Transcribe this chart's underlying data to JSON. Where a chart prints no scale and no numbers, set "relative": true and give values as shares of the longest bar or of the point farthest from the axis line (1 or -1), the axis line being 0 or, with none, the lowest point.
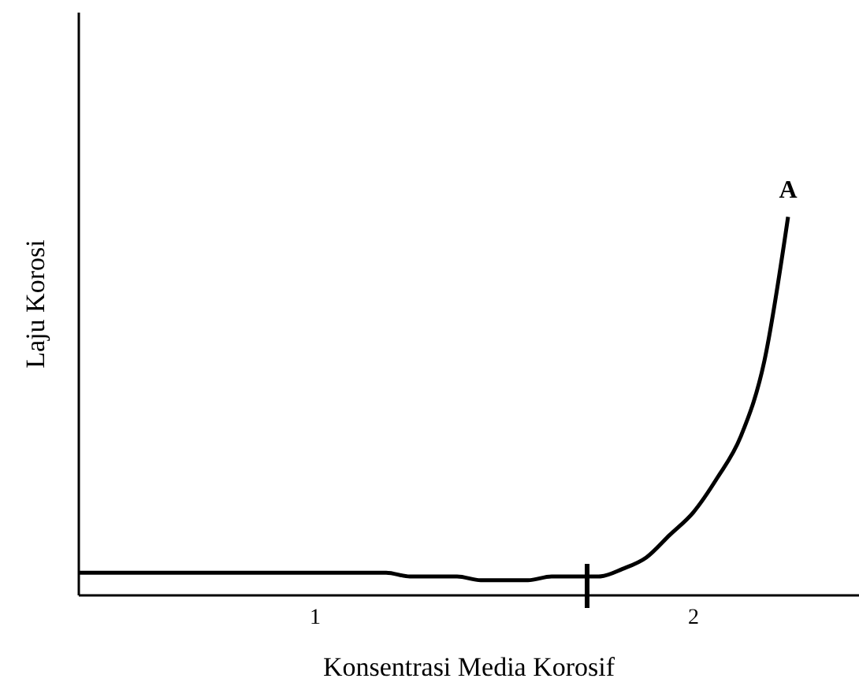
{
  "chart_data": {
    "type": "line",
    "relative": true,
    "xlabel": "Konsentrasi Media Korosif",
    "ylabel": "Laju Korosi",
    "categories": [
      null,
      null,
      null,
      null,
      null,
      null,
      null,
      null,
      null,
      null,
      "1",
      null,
      null,
      null,
      null,
      null,
      null,
      null,
      null,
      null,
      null,
      null,
      null,
      null,
      null,
      null,
      "2",
      null,
      null,
      null,
      null,
      null,
      null,
      null
    ],
    "series": [
      {
        "color": "#000000",
        "values": [
          0.06,
          0.06,
          0.06,
          0.06,
          0.06,
          0.06,
          0.06,
          0.06,
          0.06,
          0.06,
          0.06,
          0.06,
          0.06,
          0.06,
          0.05,
          0.05,
          0.05,
          0.04,
          0.04,
          0.04,
          0.05,
          0.05,
          0.05,
          0.07,
          0.1,
          0.16,
          0.22,
          0.31,
          0.42,
          0.62,
          1,
          null,
          null,
          null
        ]
      }
    ],
    "annotations": [
      "A"
    ],
    "marker": "none",
    "line_style": "solid"
  }
}
